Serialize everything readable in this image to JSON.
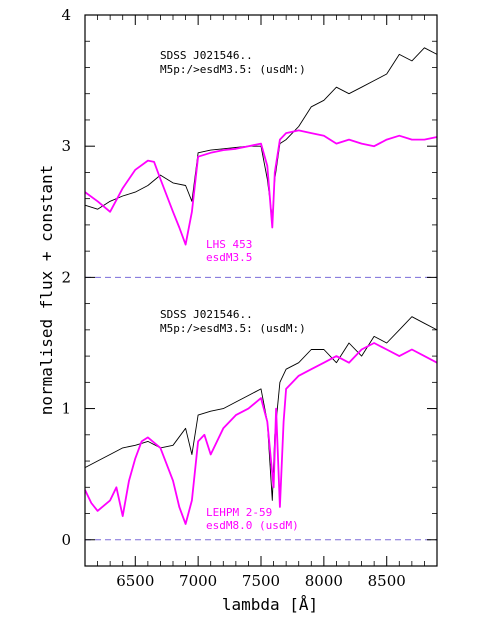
{
  "chart_data": {
    "type": "line",
    "xlabel": "lambda [Å]",
    "ylabel": "normalised flux + constant",
    "xlim": [
      6100,
      8900
    ],
    "ylim": [
      -0.2,
      4.0
    ],
    "x_ticks": [
      6500,
      7000,
      7500,
      8000,
      8500
    ],
    "y_ticks": [
      0,
      1,
      2,
      3,
      4
    ],
    "reference_lines": [
      {
        "y": 2,
        "style": "dashed",
        "color": "#7b6cd9"
      },
      {
        "y": 0,
        "style": "dashed",
        "color": "#7b6cd9"
      }
    ],
    "panels": [
      {
        "offset": 2,
        "annotations": {
          "object": "SDSS J021546..",
          "classification": "M5p:/>esdM3.5: (usdM:)",
          "comparison_name": "LHS 453",
          "comparison_type": "esdM3.5"
        },
        "series": [
          {
            "color": "#000000",
            "x": [
              6100,
              6200,
              6300,
              6400,
              6500,
              6600,
              6700,
              6800,
              6900,
              6950,
              7000,
              7100,
              7200,
              7300,
              7400,
              7500,
              7550,
              7590,
              7610,
              7650,
              7700,
              7800,
              7900,
              8000,
              8100,
              8200,
              8300,
              8400,
              8500,
              8600,
              8700,
              8800,
              8900
            ],
            "values": [
              2.55,
              2.52,
              2.58,
              2.62,
              2.65,
              2.7,
              2.78,
              2.72,
              2.7,
              2.58,
              2.95,
              2.97,
              2.98,
              2.99,
              3.0,
              3.0,
              2.75,
              2.45,
              2.75,
              3.02,
              3.05,
              3.15,
              3.3,
              3.35,
              3.45,
              3.4,
              3.45,
              3.5,
              3.55,
              3.7,
              3.65,
              3.75,
              3.7
            ]
          },
          {
            "color": "#ff00ff",
            "x": [
              6100,
              6200,
              6300,
              6400,
              6500,
              6600,
              6650,
              6700,
              6800,
              6850,
              6900,
              6950,
              7000,
              7100,
              7200,
              7300,
              7400,
              7500,
              7550,
              7590,
              7610,
              7650,
              7700,
              7800,
              7900,
              8000,
              8100,
              8200,
              8300,
              8400,
              8500,
              8600,
              8700,
              8800,
              8900
            ],
            "values": [
              2.65,
              2.58,
              2.5,
              2.68,
              2.82,
              2.89,
              2.88,
              2.75,
              2.5,
              2.38,
              2.25,
              2.5,
              2.92,
              2.95,
              2.97,
              2.98,
              3.0,
              3.02,
              2.85,
              2.38,
              2.8,
              3.05,
              3.1,
              3.12,
              3.1,
              3.08,
              3.02,
              3.05,
              3.02,
              3.0,
              3.05,
              3.08,
              3.05,
              3.05,
              3.07
            ]
          }
        ]
      },
      {
        "offset": 0,
        "annotations": {
          "object": "SDSS J021546..",
          "classification": "M5p:/>esdM3.5: (usdM:)",
          "comparison_name": "LEHPM 2-59",
          "comparison_type": "esdM8.0 (usdM)"
        },
        "series": [
          {
            "color": "#000000",
            "x": [
              6100,
              6200,
              6300,
              6400,
              6500,
              6600,
              6700,
              6800,
              6900,
              6950,
              7000,
              7100,
              7200,
              7300,
              7400,
              7500,
              7550,
              7590,
              7610,
              7650,
              7700,
              7800,
              7900,
              8000,
              8100,
              8200,
              8300,
              8400,
              8500,
              8600,
              8700,
              8800,
              8900
            ],
            "values": [
              0.55,
              0.6,
              0.65,
              0.7,
              0.72,
              0.75,
              0.7,
              0.72,
              0.85,
              0.65,
              0.95,
              0.98,
              1.0,
              1.05,
              1.1,
              1.15,
              0.9,
              0.3,
              0.8,
              1.2,
              1.3,
              1.35,
              1.45,
              1.45,
              1.35,
              1.5,
              1.4,
              1.55,
              1.5,
              1.6,
              1.7,
              1.65,
              1.6
            ]
          },
          {
            "color": "#ff00ff",
            "x": [
              6100,
              6150,
              6200,
              6300,
              6350,
              6400,
              6450,
              6500,
              6550,
              6600,
              6700,
              6800,
              6850,
              6900,
              6950,
              7000,
              7050,
              7100,
              7200,
              7300,
              7400,
              7500,
              7550,
              7600,
              7620,
              7650,
              7680,
              7700,
              7800,
              7900,
              8000,
              8100,
              8200,
              8300,
              8400,
              8500,
              8600,
              8700,
              8800,
              8900
            ],
            "values": [
              0.38,
              0.28,
              0.22,
              0.3,
              0.4,
              0.18,
              0.45,
              0.62,
              0.75,
              0.78,
              0.7,
              0.45,
              0.25,
              0.12,
              0.3,
              0.75,
              0.8,
              0.65,
              0.85,
              0.95,
              1.0,
              1.08,
              0.9,
              0.4,
              1.0,
              0.25,
              0.9,
              1.15,
              1.25,
              1.3,
              1.35,
              1.4,
              1.35,
              1.45,
              1.5,
              1.45,
              1.4,
              1.45,
              1.4,
              1.35
            ]
          }
        ]
      }
    ]
  }
}
